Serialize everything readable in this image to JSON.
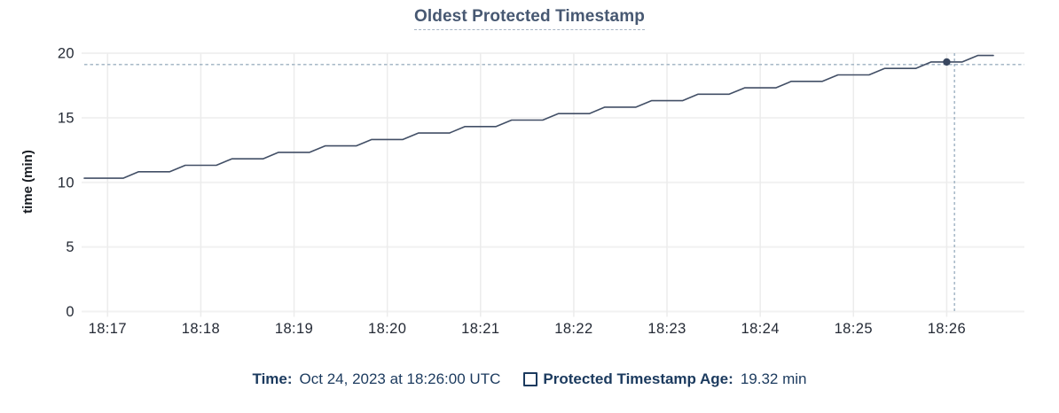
{
  "title": {
    "text": "Oldest Protected Timestamp"
  },
  "y_axis": {
    "title": "time (min)"
  },
  "legend": {
    "time_label": "Time:",
    "time_value": "Oct 24, 2023 at 18:26:00 UTC",
    "series_label": "Protected Timestamp Age:",
    "series_value": "19.32 min"
  },
  "colors": {
    "series_line": "#424f66",
    "hover_point": "#394760",
    "crosshair": "#9db1c1",
    "grid_horizontal": "#f1f1f1",
    "grid_vertical": "#ececec",
    "axis_text": "#242a35",
    "title_text": "#475872",
    "legend_text": "#1b3a5e"
  },
  "chart_data": {
    "type": "line",
    "title": "Oldest Protected Timestamp",
    "xlabel": "",
    "ylabel": "time (min)",
    "ylim": [
      0,
      20
    ],
    "grid": true,
    "legend_position": "bottom",
    "x_domain": [
      "18:16:45",
      "18:26:50"
    ],
    "x_ticks": [
      "18:17",
      "18:18",
      "18:19",
      "18:20",
      "18:21",
      "18:22",
      "18:23",
      "18:24",
      "18:25",
      "18:26"
    ],
    "y_ticks": [
      0,
      5,
      10,
      15,
      20
    ],
    "series": [
      {
        "name": "Protected Timestamp Age",
        "unit": "min",
        "x": [
          "18:16:45",
          "18:16:50",
          "18:17:00",
          "18:17:10",
          "18:17:20",
          "18:17:30",
          "18:17:40",
          "18:17:50",
          "18:18:00",
          "18:18:10",
          "18:18:20",
          "18:18:30",
          "18:18:40",
          "18:18:50",
          "18:19:00",
          "18:19:10",
          "18:19:20",
          "18:19:30",
          "18:19:40",
          "18:19:50",
          "18:20:00",
          "18:20:10",
          "18:20:20",
          "18:20:30",
          "18:20:40",
          "18:20:50",
          "18:21:00",
          "18:21:10",
          "18:21:20",
          "18:21:30",
          "18:21:40",
          "18:21:50",
          "18:22:00",
          "18:22:10",
          "18:22:20",
          "18:22:30",
          "18:22:40",
          "18:22:50",
          "18:23:00",
          "18:23:10",
          "18:23:20",
          "18:23:30",
          "18:23:40",
          "18:23:50",
          "18:24:00",
          "18:24:10",
          "18:24:20",
          "18:24:30",
          "18:24:40",
          "18:24:50",
          "18:25:00",
          "18:25:10",
          "18:25:20",
          "18:25:30",
          "18:25:40",
          "18:25:50",
          "18:26:00",
          "18:26:10",
          "18:26:20",
          "18:26:30"
        ],
        "y": [
          10.32,
          10.32,
          10.32,
          10.32,
          10.82,
          10.82,
          10.82,
          11.32,
          11.32,
          11.32,
          11.82,
          11.82,
          11.82,
          12.32,
          12.32,
          12.32,
          12.82,
          12.82,
          12.82,
          13.32,
          13.32,
          13.32,
          13.82,
          13.82,
          13.82,
          14.32,
          14.32,
          14.32,
          14.82,
          14.82,
          14.82,
          15.32,
          15.32,
          15.32,
          15.82,
          15.82,
          15.82,
          16.32,
          16.32,
          16.32,
          16.82,
          16.82,
          16.82,
          17.32,
          17.32,
          17.32,
          17.82,
          17.82,
          17.82,
          18.32,
          18.32,
          18.32,
          18.82,
          18.82,
          18.82,
          19.32,
          19.32,
          19.32,
          19.82,
          19.82
        ]
      }
    ],
    "highlight": {
      "point_time": "18:26:00",
      "point_value": 19.32,
      "cursor_time": "18:26:05",
      "cursor_value": 19.12
    }
  }
}
